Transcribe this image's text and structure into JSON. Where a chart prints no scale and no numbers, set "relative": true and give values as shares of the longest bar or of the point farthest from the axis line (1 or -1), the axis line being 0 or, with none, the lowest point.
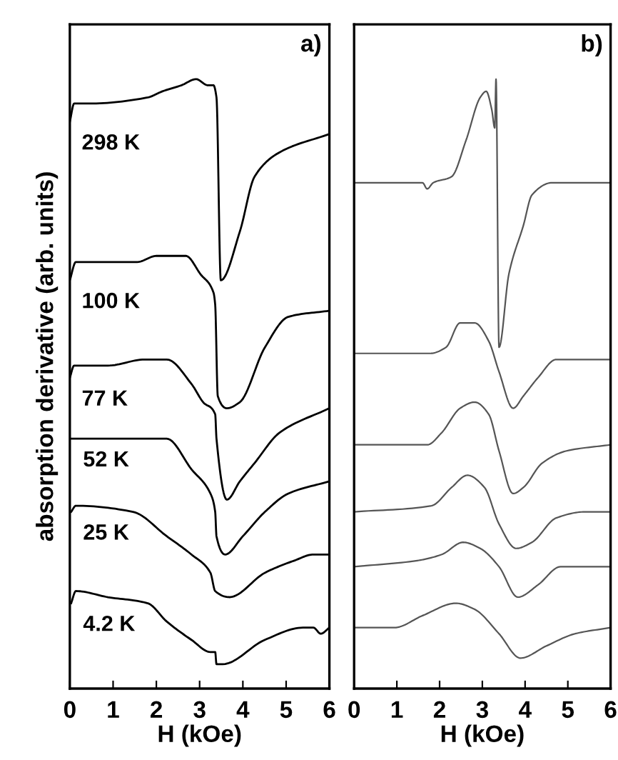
{
  "chart_data": [
    {
      "type": "line",
      "relative": true,
      "xlabel": "H (kOe)",
      "ylabel": "absorption derivative (arb. units)",
      "xlim": [
        0,
        6
      ],
      "xticks": [
        0,
        1,
        2,
        3,
        4,
        5,
        6
      ],
      "tick_labels": "x",
      "grid": false,
      "legend": false,
      "marker": "none",
      "line_style": "solid",
      "annotations": [
        "a)"
      ],
      "series": [
        {
          "name": "298 K",
          "color": "#000000",
          "x": [
            0,
            0.1,
            0.44,
            1.8,
            2.14,
            2.58,
            2.92,
            3.19,
            3.32,
            3.39,
            3.49,
            3.93,
            4.27,
            4.85,
            6
          ],
          "values": [
            0.93,
            0.96,
            0.96,
            0.97,
            0.98,
            0.99,
            1.0,
            0.99,
            0.99,
            0.97,
            0.67,
            0.75,
            0.84,
            0.88,
            0.91
          ]
        },
        {
          "name": "100 K",
          "color": "#000000",
          "x": [
            0,
            0.14,
            0.64,
            1.56,
            2.0,
            2.24,
            2.68,
            3.02,
            3.32,
            3.36,
            3.42,
            3.63,
            3.93,
            4.51,
            5.05,
            6
          ],
          "values": [
            0.67,
            0.7,
            0.7,
            0.7,
            0.71,
            0.71,
            0.71,
            0.68,
            0.65,
            0.63,
            0.48,
            0.46,
            0.47,
            0.56,
            0.61,
            0.62
          ]
        },
        {
          "name": "77 K",
          "color": "#000000",
          "x": [
            0,
            0.1,
            0.88,
            1.73,
            2.24,
            2.81,
            3.08,
            3.36,
            3.39,
            3.63,
            3.93,
            4.27,
            4.85,
            6
          ],
          "values": [
            0.51,
            0.53,
            0.53,
            0.54,
            0.54,
            0.5,
            0.47,
            0.45,
            0.41,
            0.31,
            0.34,
            0.37,
            0.42,
            0.46
          ]
        },
        {
          "name": "52 K",
          "color": "#000000",
          "x": [
            0.03,
            0.14,
            1.56,
            2.24,
            2.81,
            3.25,
            3.36,
            3.39,
            3.59,
            4.0,
            4.51,
            5.05,
            6
          ],
          "values": [
            0.41,
            0.41,
            0.41,
            0.41,
            0.36,
            0.32,
            0.29,
            0.25,
            0.22,
            0.25,
            0.29,
            0.32,
            0.34
          ]
        },
        {
          "name": "25 K",
          "color": "#000000",
          "x": [
            0.03,
            0.14,
            1.46,
            2.24,
            2.81,
            3.25,
            3.36,
            3.69,
            4.51,
            5.19,
            5.63,
            6
          ],
          "values": [
            0.29,
            0.3,
            0.29,
            0.25,
            0.22,
            0.19,
            0.16,
            0.15,
            0.19,
            0.21,
            0.22,
            0.22
          ]
        },
        {
          "name": "4.2 K",
          "color": "#000000",
          "x": [
            0.03,
            0.14,
            0.88,
            1.8,
            2.24,
            2.81,
            3.25,
            3.36,
            3.39,
            3.53,
            4.51,
            5.39,
            5.63,
            5.8,
            6
          ],
          "values": [
            0.14,
            0.16,
            0.15,
            0.14,
            0.11,
            0.08,
            0.06,
            0.06,
            0.04,
            0.04,
            0.08,
            0.1,
            0.1,
            0.09,
            0.1
          ]
        }
      ]
    },
    {
      "type": "line",
      "relative": true,
      "xlabel": "H (kOe)",
      "xlim": [
        0,
        6
      ],
      "xticks": [
        0,
        1,
        2,
        3,
        4,
        5,
        6
      ],
      "tick_labels": "x",
      "grid": false,
      "legend": false,
      "marker": "none",
      "line_style": "solid",
      "annotations": [
        "b)"
      ],
      "series": [
        {
          "color": "#555555",
          "x": [
            0,
            1.6,
            1.71,
            1.85,
            2.28,
            2.62,
            2.95,
            3.09,
            3.22,
            3.29,
            3.32,
            3.39,
            3.62,
            3.96,
            4.16,
            4.63,
            6
          ],
          "values": [
            0.83,
            0.83,
            0.82,
            0.83,
            0.84,
            0.9,
            0.97,
            0.98,
            0.95,
            0.92,
            1.0,
            0.56,
            0.68,
            0.76,
            0.81,
            0.83,
            0.83
          ]
        },
        {
          "color": "#555555",
          "x": [
            0,
            1.78,
            2.15,
            2.48,
            2.82,
            3.15,
            3.39,
            3.72,
            3.96,
            4.3,
            4.73,
            5.4,
            6
          ],
          "values": [
            0.55,
            0.55,
            0.56,
            0.6,
            0.6,
            0.57,
            0.52,
            0.46,
            0.48,
            0.51,
            0.54,
            0.54,
            0.54
          ]
        },
        {
          "color": "#555555",
          "x": [
            0,
            1.71,
            2.05,
            2.48,
            2.82,
            3.15,
            3.39,
            3.72,
            3.96,
            4.4,
            4.97,
            6
          ],
          "values": [
            0.4,
            0.4,
            0.42,
            0.46,
            0.47,
            0.45,
            0.39,
            0.32,
            0.33,
            0.37,
            0.39,
            0.4
          ]
        },
        {
          "color": "#555555",
          "x": [
            0,
            1.81,
            2.28,
            2.65,
            3.05,
            3.39,
            3.79,
            4.16,
            4.73,
            5.4,
            6
          ],
          "values": [
            0.29,
            0.3,
            0.33,
            0.35,
            0.33,
            0.27,
            0.23,
            0.24,
            0.28,
            0.29,
            0.29
          ]
        },
        {
          "color": "#555555",
          "x": [
            0,
            1.48,
            2.05,
            2.55,
            2.95,
            3.39,
            3.83,
            4.3,
            4.83,
            6
          ],
          "values": [
            0.2,
            0.21,
            0.22,
            0.24,
            0.23,
            0.2,
            0.15,
            0.17,
            0.2,
            0.2
          ]
        },
        {
          "color": "#555555",
          "x": [
            0,
            0.94,
            1.61,
            2.38,
            2.82,
            3.39,
            3.89,
            4.5,
            5.17,
            6
          ],
          "values": [
            0.1,
            0.1,
            0.12,
            0.14,
            0.13,
            0.09,
            0.05,
            0.07,
            0.09,
            0.1
          ]
        }
      ]
    }
  ]
}
